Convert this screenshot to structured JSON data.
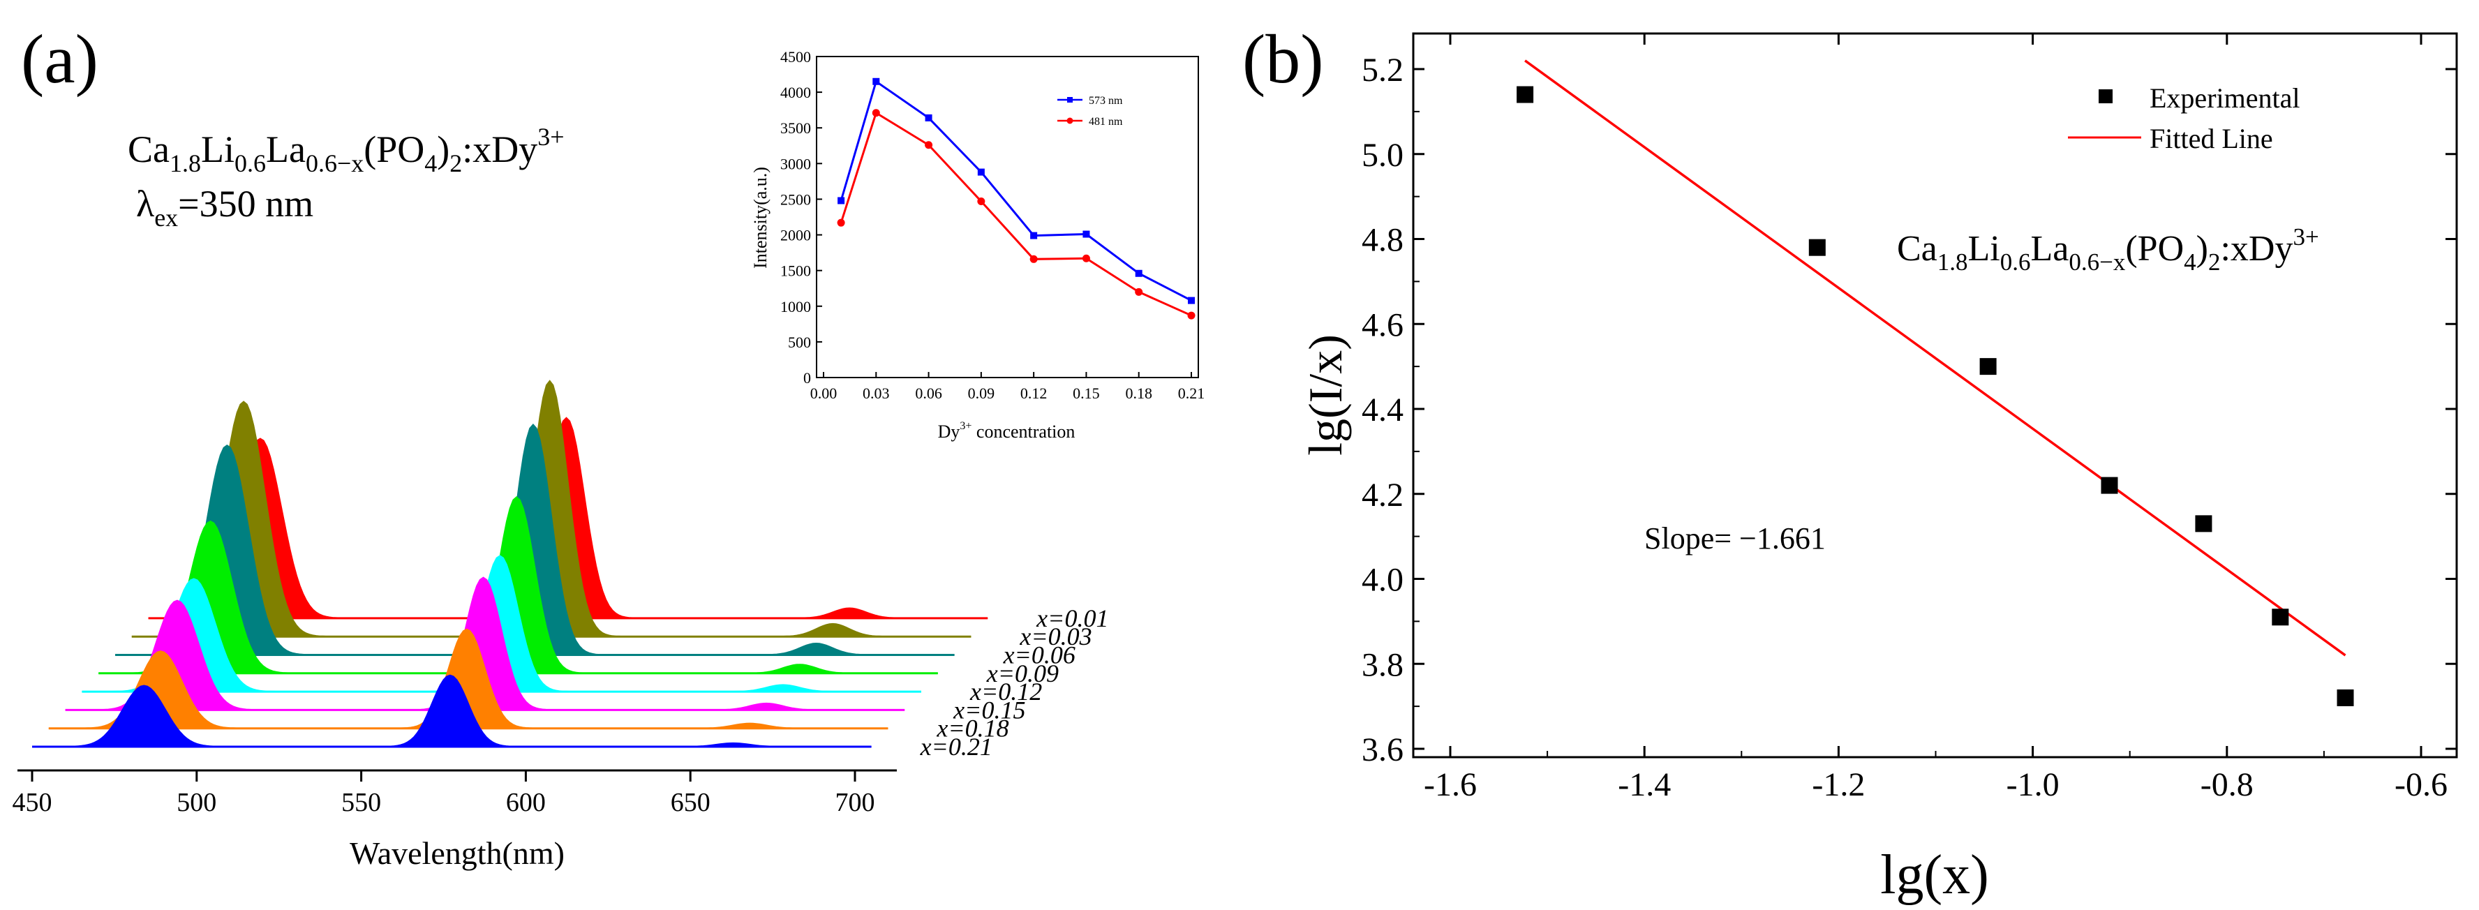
{
  "panel_a": {
    "label": "(a)",
    "formula": {
      "p1": "Ca",
      "s1": "1.8",
      "p2": "Li",
      "s2": "0.6",
      "p3": "La",
      "s3": "0.6−x",
      "p4": "(PO",
      "s4": "4",
      "p5": ")",
      "s5": "2",
      "p6": ":xDy",
      "sup": "3+"
    },
    "excitation": {
      "symbol": "λ",
      "sub": "ex",
      "value": "=350 nm"
    }
  },
  "panel_b": {
    "label": "(b)",
    "formula": {
      "p1": "Ca",
      "s1": "1.8",
      "p2": "Li",
      "s2": "0.6",
      "p3": "La",
      "s3": "0.6−x",
      "p4": "(PO",
      "s4": "4",
      "p5": ")",
      "s5": "2",
      "p6": ":xDy",
      "sup": "3+"
    },
    "slope_text": "Slope= −1.661"
  },
  "colors": {
    "x=0.01": "#ff0000",
    "x=0.03": "#808000",
    "x=0.06": "#008080",
    "x=0.09": "#00ee00",
    "x=0.12": "#00ffff",
    "x=0.15": "#ff00ff",
    "x=0.18": "#ff8000",
    "x=0.21": "#0000ff",
    "inset_573": "#0000ff",
    "inset_481": "#ff0000",
    "fit": "#ff0000",
    "points": "#000000"
  },
  "chart_data": [
    {
      "type": "line",
      "id": "spectra",
      "title": "",
      "xlabel": "Wavelength(nm)",
      "ylabel": "",
      "xlim": [
        450,
        710
      ],
      "x_ticks": [
        "450",
        "500",
        "550",
        "600",
        "650",
        "700"
      ],
      "peaks_nm": [
        484,
        577
      ],
      "series": [
        {
          "name": "x=0.01",
          "blue_peak": 1.56,
          "yellow_peak": 1.74
        },
        {
          "name": "x=0.03",
          "blue_peak": 2.04,
          "yellow_peak": 2.22
        },
        {
          "name": "x=0.06",
          "blue_peak": 1.82,
          "yellow_peak": 2.0
        },
        {
          "name": "x=0.09",
          "blue_peak": 1.32,
          "yellow_peak": 1.53
        },
        {
          "name": "x=0.12",
          "blue_peak": 0.98,
          "yellow_peak": 1.18
        },
        {
          "name": "x=0.15",
          "blue_peak": 0.95,
          "yellow_peak": 1.15
        },
        {
          "name": "x=0.18",
          "blue_peak": 0.67,
          "yellow_peak": 0.86
        },
        {
          "name": "x=0.21",
          "blue_peak": 0.53,
          "yellow_peak": 0.62
        }
      ],
      "legend_labels": [
        "x=0.01",
        "x=0.03",
        "x=0.06",
        "x=0.09",
        "x=0.12",
        "x=0.15",
        "x=0.18",
        "x=0.21"
      ]
    },
    {
      "type": "line",
      "id": "inset",
      "title": "",
      "xlabel": "concentration",
      "xlabel_prefix": "Dy",
      "xlabel_sup": "3+",
      "ylabel": "Intensity(a.u.)",
      "xlim": [
        0.0,
        0.21
      ],
      "ylim": [
        0,
        4500
      ],
      "x_ticks": [
        "0.00",
        "0.03",
        "0.06",
        "0.09",
        "0.12",
        "0.15",
        "0.18",
        "0.21"
      ],
      "y_ticks": [
        "0",
        "500",
        "1000",
        "1500",
        "2000",
        "2500",
        "3000",
        "3500",
        "4000",
        "4500"
      ],
      "x": [
        0.01,
        0.03,
        0.06,
        0.09,
        0.12,
        0.15,
        0.18,
        0.21
      ],
      "series": [
        {
          "name": "573 nm",
          "values": [
            2480,
            4150,
            3640,
            2880,
            1990,
            2010,
            1460,
            1080
          ]
        },
        {
          "name": "481 nm",
          "values": [
            2170,
            3710,
            3260,
            2470,
            1660,
            1670,
            1200,
            870
          ]
        }
      ]
    },
    {
      "type": "scatter",
      "id": "loglog",
      "title": "",
      "xlabel": "lg(x)",
      "ylabel": "lg(I/x)",
      "xlim": [
        -1.6,
        -0.6
      ],
      "ylim": [
        3.6,
        5.2
      ],
      "x_ticks": [
        "-1.6",
        "-1.4",
        "-1.2",
        "-1.0",
        "-0.8",
        "-0.6"
      ],
      "y_ticks": [
        "3.6",
        "3.8",
        "4.0",
        "4.2",
        "4.4",
        "4.6",
        "4.8",
        "5.0",
        "5.2"
      ],
      "series": [
        {
          "name": "Experimental",
          "x": [
            -1.523,
            -1.222,
            -1.046,
            -0.921,
            -0.824,
            -0.745,
            -0.678
          ],
          "y": [
            5.14,
            4.78,
            4.5,
            4.22,
            4.13,
            3.91,
            3.72
          ]
        },
        {
          "name": "Fitted Line",
          "x": [
            -1.523,
            -0.678
          ],
          "y": [
            5.22,
            3.82
          ]
        }
      ]
    }
  ]
}
